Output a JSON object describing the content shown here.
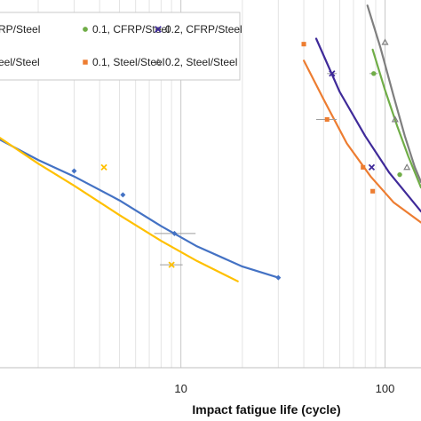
{
  "chart_data": {
    "type": "scatter",
    "title": "",
    "xlabel": "Impact fatigue life (cycle)",
    "ylabel": "",
    "x_scale": "log",
    "xlim": [
      1.3,
      150
    ],
    "ylim": [
      0,
      1
    ],
    "grid": "vertical minor lines on log x axis",
    "x_tick_labels": [
      {
        "value": 10,
        "label": "10"
      },
      {
        "value": 100,
        "label": "100"
      }
    ],
    "legend": {
      "placement": "top",
      "entries": [
        {
          "label": "RP/Steel",
          "color": "#4472c4",
          "marker": "diamond"
        },
        {
          "label": "0.1, CFRP/Steel",
          "color": "#70ad47",
          "marker": "circle"
        },
        {
          "label": "0.2, CFRP/Steel",
          "color": "#3f2a99",
          "marker": "x"
        },
        {
          "label": "eel/Steel",
          "color": "#ffc000",
          "marker": "x"
        },
        {
          "label": "0.1, Steel/Steel",
          "color": "#ed7d31",
          "marker": "square"
        },
        {
          "label": "0.2, Steel/Steel",
          "color": "#7f7f7f",
          "marker": "triangle"
        }
      ]
    },
    "series": [
      {
        "color": "#4472c4",
        "marker": "diamond",
        "points": [
          {
            "x": 3.0,
            "y": 0.535
          },
          {
            "x": 5.2,
            "y": 0.47
          },
          {
            "x": 9.3,
            "y": 0.365
          },
          {
            "x": 30,
            "y": 0.245
          }
        ],
        "x_errors": [
          {
            "y": 0.365,
            "xmin": 7.4,
            "xmax": 11.8
          }
        ],
        "curve": [
          {
            "x": 1.3,
            "y": 0.62
          },
          {
            "x": 2,
            "y": 0.565
          },
          {
            "x": 3,
            "y": 0.52
          },
          {
            "x": 5,
            "y": 0.455
          },
          {
            "x": 8,
            "y": 0.385
          },
          {
            "x": 12,
            "y": 0.33
          },
          {
            "x": 20,
            "y": 0.275
          },
          {
            "x": 30,
            "y": 0.245
          }
        ]
      },
      {
        "color": "#ffc000",
        "marker": "x",
        "points": [
          {
            "x": 4.2,
            "y": 0.545
          },
          {
            "x": 9.0,
            "y": 0.28
          }
        ],
        "x_errors": [
          {
            "y": 0.28,
            "xmin": 7.9,
            "xmax": 10.2
          }
        ],
        "curve": [
          {
            "x": 1.3,
            "y": 0.625
          },
          {
            "x": 2,
            "y": 0.555
          },
          {
            "x": 3,
            "y": 0.495
          },
          {
            "x": 5,
            "y": 0.415
          },
          {
            "x": 8,
            "y": 0.345
          },
          {
            "x": 12,
            "y": 0.29
          },
          {
            "x": 19,
            "y": 0.235
          }
        ]
      },
      {
        "color": "#ed7d31",
        "marker": "square",
        "points": [
          {
            "x": 40,
            "y": 0.88
          },
          {
            "x": 52,
            "y": 0.675
          },
          {
            "x": 78,
            "y": 0.545
          },
          {
            "x": 87,
            "y": 0.48
          }
        ],
        "x_errors": [
          {
            "y": 0.675,
            "xmin": 46,
            "xmax": 58
          }
        ],
        "curve": [
          {
            "x": 40,
            "y": 0.835
          },
          {
            "x": 50,
            "y": 0.73
          },
          {
            "x": 65,
            "y": 0.61
          },
          {
            "x": 85,
            "y": 0.52
          },
          {
            "x": 110,
            "y": 0.45
          },
          {
            "x": 150,
            "y": 0.395
          }
        ]
      },
      {
        "color": "#3f2a99",
        "marker": "x",
        "points": [
          {
            "x": 55,
            "y": 0.8
          },
          {
            "x": 86,
            "y": 0.545
          }
        ],
        "x_errors": [
          {
            "y": 0.8,
            "xmin": 52,
            "xmax": 58
          }
        ],
        "curve": [
          {
            "x": 46,
            "y": 0.895
          },
          {
            "x": 60,
            "y": 0.75
          },
          {
            "x": 80,
            "y": 0.63
          },
          {
            "x": 105,
            "y": 0.53
          },
          {
            "x": 150,
            "y": 0.425
          }
        ]
      },
      {
        "color": "#70ad47",
        "marker": "circle",
        "points": [
          {
            "x": 88,
            "y": 0.8
          },
          {
            "x": 118,
            "y": 0.525
          }
        ],
        "x_errors": [
          {
            "y": 0.8,
            "xmin": 84,
            "xmax": 92
          }
        ],
        "curve": [
          {
            "x": 87,
            "y": 0.865
          },
          {
            "x": 100,
            "y": 0.755
          },
          {
            "x": 115,
            "y": 0.655
          },
          {
            "x": 130,
            "y": 0.575
          },
          {
            "x": 150,
            "y": 0.49
          }
        ]
      },
      {
        "color": "#7f7f7f",
        "marker": "triangle",
        "points": [
          {
            "x": 100,
            "y": 0.885
          },
          {
            "x": 112,
            "y": 0.675
          },
          {
            "x": 128,
            "y": 0.545
          }
        ],
        "x_errors": [],
        "curve": [
          {
            "x": 82,
            "y": 0.985
          },
          {
            "x": 95,
            "y": 0.87
          },
          {
            "x": 110,
            "y": 0.74
          },
          {
            "x": 125,
            "y": 0.63
          },
          {
            "x": 140,
            "y": 0.545
          },
          {
            "x": 150,
            "y": 0.505
          }
        ]
      }
    ]
  }
}
